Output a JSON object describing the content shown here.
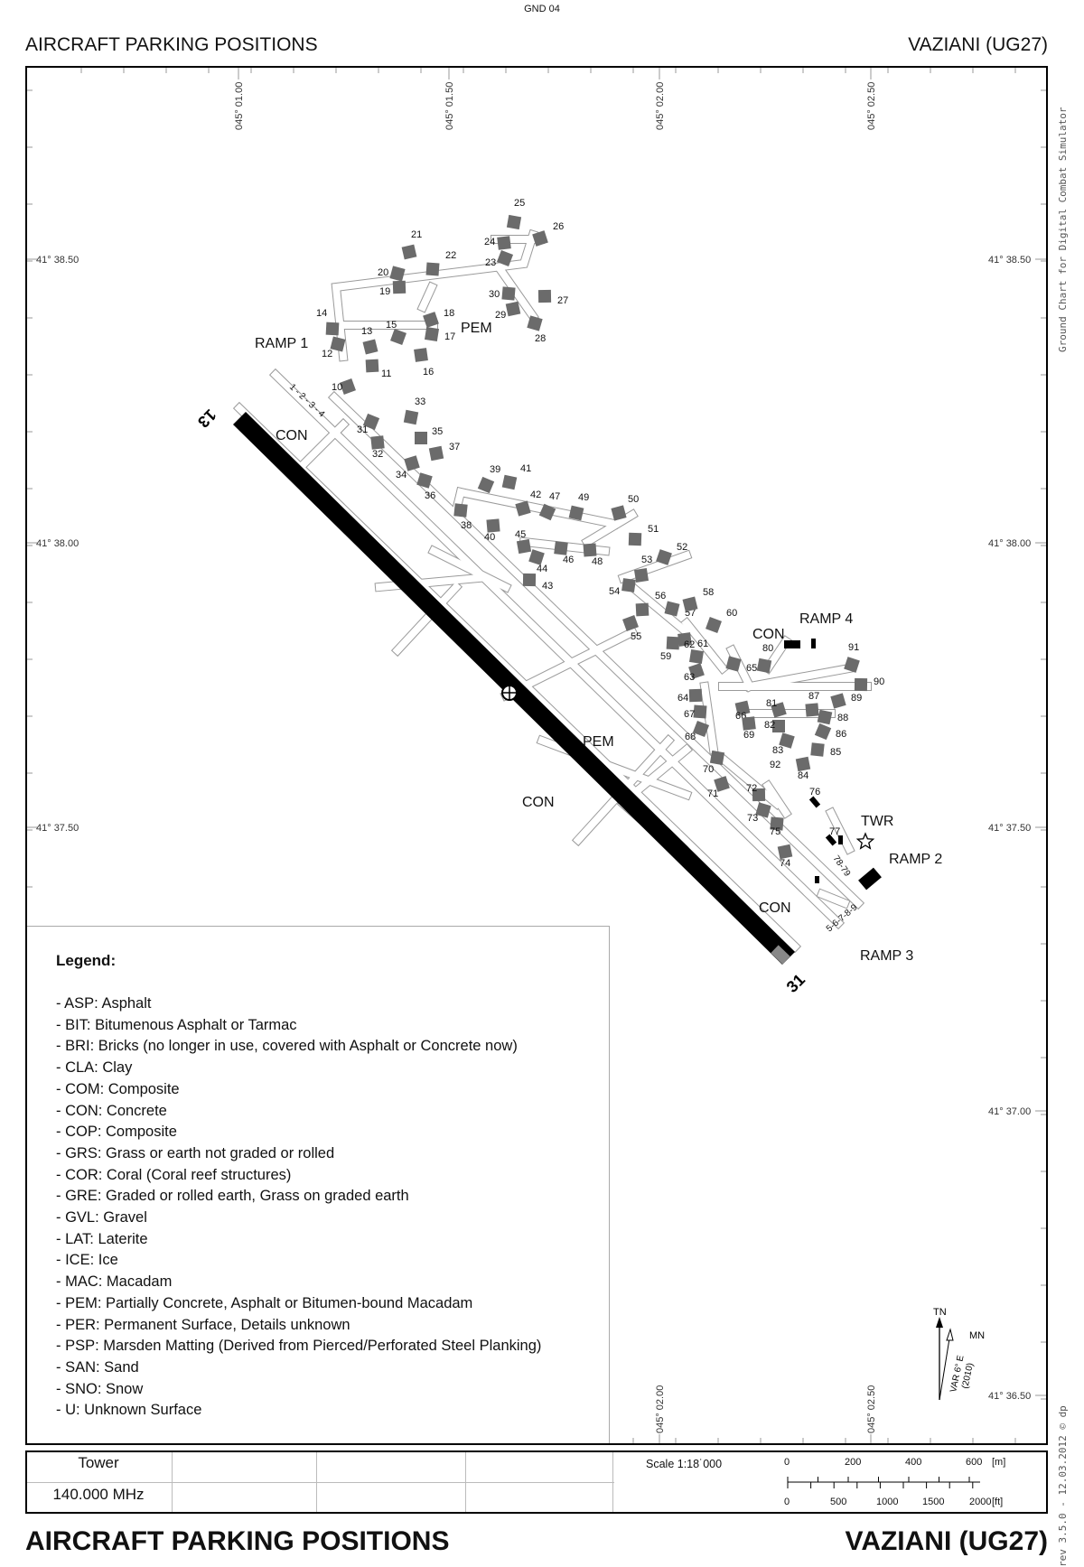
{
  "header": {
    "code": "GND 04",
    "title": "AIRCRAFT PARKING POSITIONS",
    "airport": "VAZIANI (UG27)"
  },
  "footer": {
    "title": "AIRCRAFT PARKING POSITIONS",
    "airport": "VAZIANI (UG27)"
  },
  "side_credit": {
    "top": "Ground Chart for Digital Combat Simulator",
    "bottom": "rev 3.5.0  -  12.03.2012 © dp"
  },
  "grid": {
    "longitudes_top": [
      "045° 01.00",
      "045° 01.50",
      "045° 02.00",
      "045° 02.50"
    ],
    "longitudes_bottom": [
      "045° 02.00",
      "045° 02.50"
    ],
    "latitudes_left": [
      "41° 38.50",
      "41° 38.00",
      "41° 37.50"
    ],
    "latitudes_right": [
      "41° 38.50",
      "41° 38.00",
      "41° 37.50",
      "41° 37.00",
      "41° 36.50"
    ]
  },
  "runway": {
    "end_nw": "13",
    "end_se": "31"
  },
  "areas": {
    "ramp1": "RAMP 1",
    "ramp2": "RAMP 2",
    "ramp3": "RAMP 3",
    "ramp4": "RAMP 4",
    "twr": "TWR",
    "ramp1_spots": "1 - 2 - 3 - 4",
    "ramp2_spots": "78-79",
    "ramp3_spots": "5-6-7-8-9",
    "surface_con": "CON",
    "surface_pem": "PEM"
  },
  "parking_spots": [
    "10",
    "11",
    "12",
    "13",
    "14",
    "15",
    "16",
    "17",
    "18",
    "19",
    "20",
    "21",
    "22",
    "23",
    "24",
    "25",
    "26",
    "27",
    "28",
    "29",
    "30",
    "31",
    "32",
    "33",
    "34",
    "35",
    "36",
    "37",
    "38",
    "39",
    "40",
    "41",
    "42",
    "43",
    "44",
    "45",
    "46",
    "47",
    "48",
    "49",
    "50",
    "51",
    "52",
    "53",
    "54",
    "55",
    "56",
    "57",
    "58",
    "59",
    "60",
    "61",
    "62",
    "63",
    "64",
    "65",
    "66",
    "67",
    "68",
    "69",
    "70",
    "71",
    "72",
    "73",
    "74",
    "75",
    "76",
    "77",
    "80",
    "81",
    "82",
    "83",
    "84",
    "85",
    "86",
    "87",
    "88",
    "89",
    "90",
    "91",
    "92"
  ],
  "legend": {
    "title": "Legend:",
    "items": [
      "- ASP: Asphalt",
      "- BIT: Bitumenous Asphalt or Tarmac",
      "- BRI: Bricks (no longer in use, covered with Asphalt or Concrete now)",
      "- CLA: Clay",
      "- COM: Composite",
      "- CON: Concrete",
      "- COP: Composite",
      "- GRS: Grass or earth not graded or rolled",
      "- COR: Coral (Coral reef structures)",
      "- GRE: Graded or rolled earth, Grass on graded earth",
      "- GVL: Gravel",
      "- LAT: Laterite",
      "- ICE: Ice",
      "- MAC: Macadam",
      "- PEM: Partially Concrete, Asphalt or Bitumen-bound Macadam",
      "- PER: Permanent Surface, Details unknown",
      "- PSP: Marsden Matting (Derived from Pierced/Perforated Steel Planking)",
      "- SAN: Sand",
      "- SNO: Snow",
      "- U: Unknown Surface"
    ]
  },
  "compass": {
    "tn": "TN",
    "mn": "MN",
    "var": "VAR 6° E",
    "var_year": "(2010)"
  },
  "info": {
    "tower_label": "Tower",
    "tower_freq": "140.000 MHz",
    "scale": "Scale 1:18˙000",
    "scale_m": [
      "0",
      "200",
      "400",
      "600",
      "[m]"
    ],
    "scale_ft": [
      "0",
      "500",
      "1000",
      "1500",
      "2000",
      "[ft]"
    ]
  },
  "colors": {
    "spot_fill": "#6b6b6b",
    "runway": "#000000",
    "taxiway": "#ffffff",
    "taxi_edge": "#9a9a9a"
  }
}
